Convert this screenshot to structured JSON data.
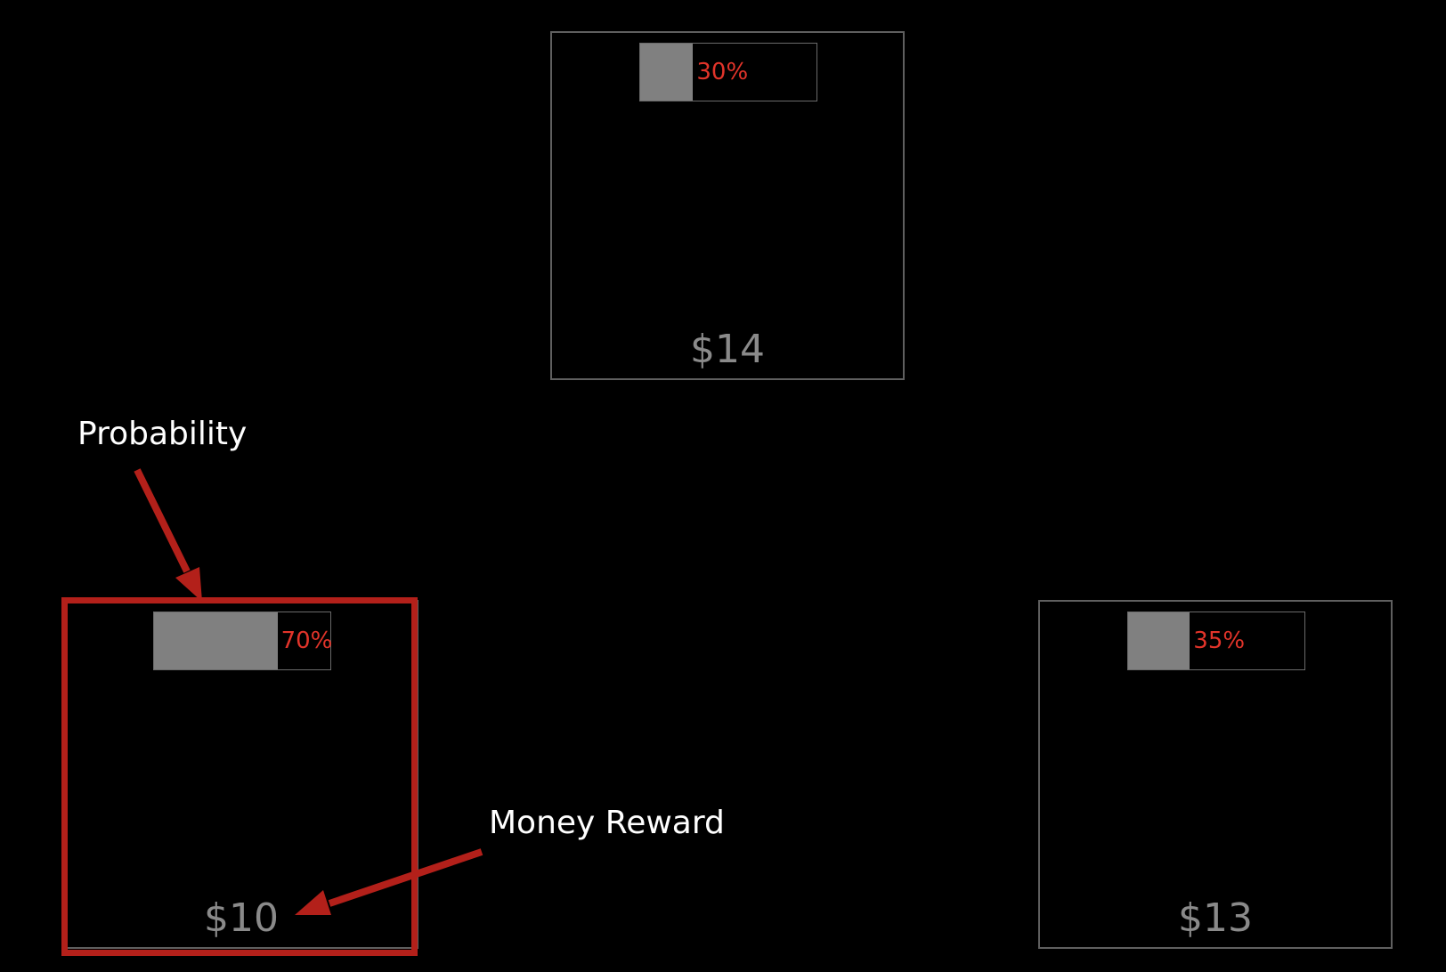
{
  "colors": {
    "background": "#000000",
    "box_border": "#5f5f5f",
    "bar_fill": "#808080",
    "percent_text": "#e2342a",
    "reward_text": "#8a8a8a",
    "highlight": "#b3201a",
    "callout_text": "#ffffff"
  },
  "options": [
    {
      "probability": 0.3,
      "probability_label": "30%",
      "reward_label": "$14"
    },
    {
      "probability": 0.7,
      "probability_label": "70%",
      "reward_label": "$10"
    },
    {
      "probability": 0.35,
      "probability_label": "35%",
      "reward_label": "$13"
    }
  ],
  "annotations": {
    "probability_label": "Probability",
    "reward_label": "Money Reward"
  }
}
